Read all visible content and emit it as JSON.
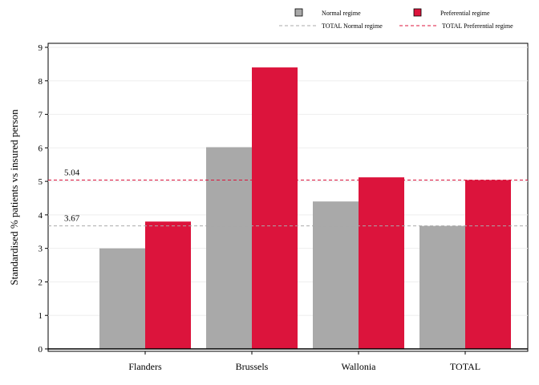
{
  "chart_data": {
    "type": "bar",
    "title": "",
    "xlabel": "",
    "ylabel": "Standardised % patients vs insured person",
    "categories": [
      "Flanders",
      "Brussels",
      "Wallonia",
      "TOTAL"
    ],
    "series": [
      {
        "name": "Normal regime",
        "color": "#a9a9a9",
        "values": [
          3.0,
          6.02,
          4.4,
          3.67
        ]
      },
      {
        "name": "Preferential regime",
        "color": "#dc143c",
        "values": [
          3.8,
          8.4,
          5.12,
          5.04
        ]
      }
    ],
    "reference_lines": [
      {
        "name": "TOTAL Normal regime",
        "value": 3.67,
        "label": "3.67",
        "color": "#a9a9a9",
        "style": "dashed"
      },
      {
        "name": "TOTAL Preferential regime",
        "value": 5.04,
        "label": "5.04",
        "color": "#dc143c",
        "style": "dashed"
      }
    ],
    "ylim": [
      0,
      9
    ],
    "yticks": [
      "0",
      "1",
      "2",
      "3",
      "4",
      "5",
      "6",
      "7",
      "8",
      "9"
    ],
    "grid": "horizontal",
    "legend_position": "top-right"
  }
}
